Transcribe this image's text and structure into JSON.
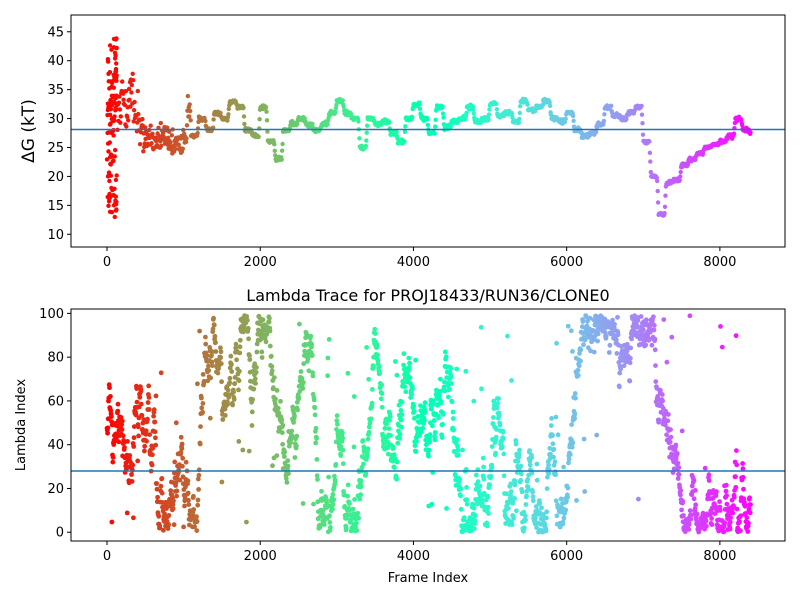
{
  "chart_data": [
    {
      "type": "scatter",
      "title": "",
      "ylabel": "ΔG (kT)",
      "xlabel": "",
      "xlim": [
        -470,
        8850
      ],
      "ylim": [
        7.8,
        47.9
      ],
      "xticks": [
        0,
        2000,
        4000,
        6000,
        8000
      ],
      "xtick_labels": [
        "0",
        "2000",
        "4000",
        "6000",
        "8000"
      ],
      "yticks": [
        10,
        15,
        20,
        25,
        30,
        35,
        40,
        45
      ],
      "ytick_labels": [
        "10",
        "15",
        "20",
        "25",
        "30",
        "35",
        "40",
        "45"
      ],
      "hline": 28.1,
      "hline_color": "#1f77b4",
      "colormap": "rainbow (reversed): red at frame 0 → purple at final frame",
      "grid": false,
      "frames_max": 8400,
      "keypoints_x": [
        0,
        60,
        120,
        200,
        280,
        350,
        430,
        470,
        520,
        600,
        700,
        800,
        900,
        1000,
        1050,
        1100,
        1200,
        1300,
        1400,
        1500,
        1600,
        1700,
        1800,
        1900,
        2000,
        2100,
        2200,
        2300,
        2400,
        2500,
        2600,
        2700,
        2800,
        2900,
        3000,
        3100,
        3200,
        3300,
        3400,
        3500,
        3600,
        3700,
        3800,
        3900,
        4000,
        4100,
        4200,
        4300,
        4400,
        4500,
        4600,
        4700,
        4800,
        4900,
        5000,
        5100,
        5200,
        5300,
        5400,
        5500,
        5600,
        5700,
        5800,
        5900,
        6000,
        6100,
        6200,
        6300,
        6400,
        6500,
        6600,
        6700,
        6800,
        6900,
        7000,
        7100,
        7200,
        7300,
        7400,
        7500,
        7600,
        7700,
        7800,
        7900,
        8000,
        8100,
        8200,
        8300,
        8400
      ],
      "keypoints_y": [
        30,
        28,
        31,
        34,
        34,
        31,
        29,
        26,
        27,
        26,
        27,
        25,
        25.5,
        26,
        32,
        27,
        30,
        28,
        31,
        30,
        33,
        32,
        28,
        27,
        32,
        26,
        23,
        28,
        29,
        30,
        29,
        28,
        29,
        31,
        33,
        31,
        30,
        25,
        30,
        29,
        29.5,
        27.5,
        26,
        30,
        32.5,
        30,
        27.5,
        32,
        28.5,
        29.5,
        30,
        32,
        29.5,
        30,
        32.5,
        30.5,
        31,
        29.5,
        33,
        31.5,
        32,
        33,
        30,
        29.5,
        31,
        28,
        27,
        27.5,
        29,
        32,
        30.5,
        30,
        31,
        32,
        26,
        20,
        13.5,
        19,
        19.5,
        22,
        23,
        24,
        25,
        25.5,
        26,
        27,
        30,
        28,
        27.5
      ],
      "early_spread_note": "frames 0-500 show widely scattered values between about 8 and 47"
    },
    {
      "type": "scatter",
      "title": "Lambda Trace for PROJ18433/RUN36/CLONE0",
      "xlabel": "Frame Index",
      "ylabel": "Lambda Index",
      "xlim": [
        -470,
        8850
      ],
      "ylim": [
        -4,
        102
      ],
      "xticks": [
        0,
        2000,
        4000,
        6000,
        8000
      ],
      "xtick_labels": [
        "0",
        "2000",
        "4000",
        "6000",
        "8000"
      ],
      "yticks": [
        0,
        20,
        40,
        60,
        80,
        100
      ],
      "ytick_labels": [
        "0",
        "20",
        "40",
        "60",
        "80",
        "100"
      ],
      "hline": 28,
      "hline_color": "#1f77b4",
      "y_range_of_points": [
        0,
        99
      ],
      "dense_high_band": {
        "x_range": [
          6950,
          7150
        ],
        "y_range": [
          85,
          99
        ]
      },
      "grid": false
    }
  ]
}
